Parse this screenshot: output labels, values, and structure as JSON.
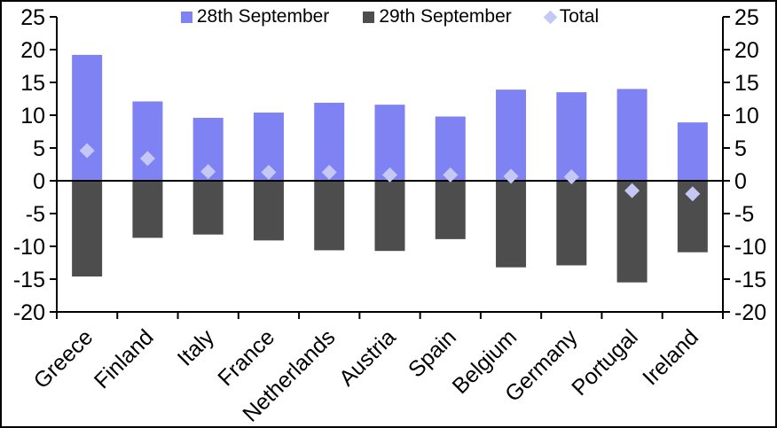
{
  "chart_data": {
    "type": "bar",
    "title": "",
    "xlabel": "",
    "ylabel": "",
    "categories": [
      "Greece",
      "Finland",
      "Italy",
      "France",
      "Netherlands",
      "Austria",
      "Spain",
      "Belgium",
      "Germany",
      "Portugal",
      "Ireland"
    ],
    "series": [
      {
        "name": "28th September",
        "type": "bar",
        "color": "#7f82f3",
        "values": [
          19.2,
          12.1,
          9.6,
          10.4,
          11.9,
          11.6,
          9.8,
          13.9,
          13.5,
          14.0,
          8.9
        ]
      },
      {
        "name": "29th September",
        "type": "bar",
        "color": "#4d4d4d",
        "values": [
          -14.6,
          -8.7,
          -8.2,
          -9.1,
          -10.6,
          -10.7,
          -8.9,
          -13.2,
          -12.9,
          -15.5,
          -10.9
        ]
      },
      {
        "name": "Total",
        "type": "diamond-marker",
        "color": "#c5c7f5",
        "values": [
          4.6,
          3.4,
          1.4,
          1.3,
          1.3,
          0.9,
          0.9,
          0.7,
          0.6,
          -1.5,
          -2.0
        ]
      }
    ],
    "ylim": [
      -20,
      25
    ],
    "yticks": [
      25,
      20,
      15,
      10,
      5,
      0,
      -5,
      -10,
      -15,
      -20
    ],
    "dual_y_axis": true,
    "grid": false,
    "zero_line": true,
    "legend_position": "top-center",
    "axis_color": "#000000",
    "background_color": "#ffffff",
    "x_label_rotation_deg": 45
  }
}
